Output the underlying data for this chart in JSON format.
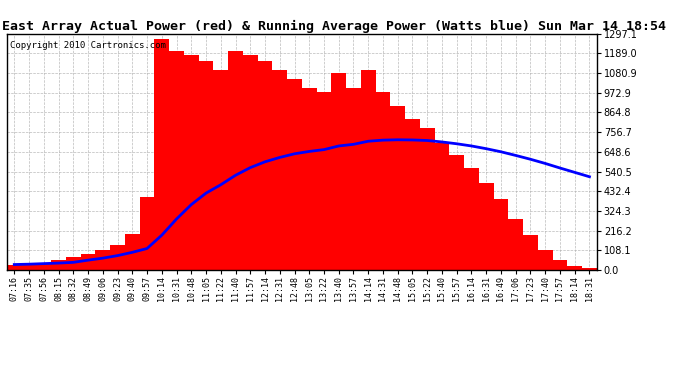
{
  "title": "East Array Actual Power (red) & Running Average Power (Watts blue) Sun Mar 14 18:54",
  "copyright": "Copyright 2010 Cartronics.com",
  "ylim": [
    0.0,
    1297.1
  ],
  "yticks": [
    0.0,
    108.1,
    216.2,
    324.3,
    432.4,
    540.5,
    648.6,
    756.7,
    864.8,
    972.9,
    1080.9,
    1189.0,
    1297.1
  ],
  "bar_color": "red",
  "avg_color": "blue",
  "bg_color": "white",
  "grid_color": "#aaaaaa",
  "title_fontsize": 9.5,
  "copyright_fontsize": 6.5,
  "time_labels": [
    "07:16",
    "07:35",
    "07:56",
    "08:15",
    "08:32",
    "08:49",
    "09:06",
    "09:23",
    "09:40",
    "09:57",
    "10:14",
    "10:31",
    "10:48",
    "11:05",
    "11:22",
    "11:40",
    "11:57",
    "12:14",
    "12:31",
    "12:48",
    "13:05",
    "13:22",
    "13:40",
    "13:57",
    "14:14",
    "14:31",
    "14:48",
    "15:05",
    "15:22",
    "15:40",
    "15:57",
    "16:14",
    "16:31",
    "16:49",
    "17:06",
    "17:23",
    "17:40",
    "17:57",
    "18:14",
    "18:31"
  ],
  "actual_power": [
    30,
    35,
    40,
    55,
    70,
    90,
    110,
    140,
    200,
    400,
    1270,
    1200,
    1180,
    1150,
    1100,
    1200,
    1180,
    1150,
    1100,
    1050,
    1000,
    980,
    1080,
    1000,
    1100,
    980,
    900,
    830,
    780,
    700,
    630,
    560,
    480,
    390,
    280,
    190,
    110,
    55,
    20,
    10
  ],
  "avg_power": [
    30,
    32,
    35,
    38,
    42,
    54,
    65,
    79,
    97,
    118,
    191,
    280,
    359,
    422,
    468,
    520,
    562,
    594,
    618,
    638,
    651,
    661,
    681,
    690,
    707,
    713,
    715,
    714,
    711,
    703,
    693,
    681,
    666,
    649,
    629,
    608,
    585,
    560,
    536,
    512
  ]
}
